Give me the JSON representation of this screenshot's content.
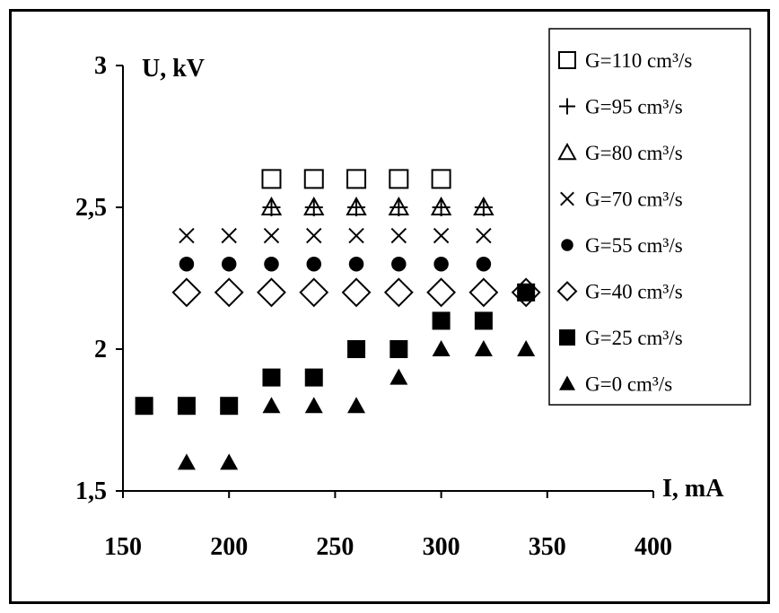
{
  "chart_data": {
    "type": "scatter",
    "title": "",
    "xlabel": "I, mA",
    "ylabel": "U, kV",
    "xlim": [
      150,
      400
    ],
    "ylim": [
      1.5,
      3
    ],
    "x_ticks": [
      150,
      200,
      250,
      300,
      350,
      400
    ],
    "x_tick_labels": [
      "150",
      "200",
      "250",
      "300",
      "350",
      "400"
    ],
    "y_ticks": [
      1.5,
      2,
      2.5,
      3
    ],
    "y_tick_labels": [
      "1,5",
      "2",
      "2,5",
      "3"
    ],
    "grid": false,
    "legend_position": "top-right",
    "series": [
      {
        "name": "G=110 cm³/s",
        "marker": "square-open",
        "x": [
          220,
          240,
          260,
          280,
          300
        ],
        "y": [
          2.6,
          2.6,
          2.6,
          2.6,
          2.6
        ]
      },
      {
        "name": "G=95 cm³/s",
        "marker": "plus",
        "x": [
          220,
          240,
          260,
          280,
          300,
          320
        ],
        "y": [
          2.5,
          2.5,
          2.5,
          2.5,
          2.5,
          2.5
        ]
      },
      {
        "name": "G=80 cm³/s",
        "marker": "triangle-open",
        "x": [
          220,
          240,
          260,
          280,
          300,
          320
        ],
        "y": [
          2.5,
          2.5,
          2.5,
          2.5,
          2.5,
          2.5
        ]
      },
      {
        "name": "G=70 cm³/s",
        "marker": "cross",
        "x": [
          180,
          200,
          220,
          240,
          260,
          280,
          300,
          320
        ],
        "y": [
          2.4,
          2.4,
          2.4,
          2.4,
          2.4,
          2.4,
          2.4,
          2.4
        ]
      },
      {
        "name": "G=55 cm³/s",
        "marker": "circle-filled",
        "x": [
          180,
          200,
          220,
          240,
          260,
          280,
          300,
          320,
          340
        ],
        "y": [
          2.3,
          2.3,
          2.3,
          2.3,
          2.3,
          2.3,
          2.3,
          2.3,
          2.2
        ]
      },
      {
        "name": "G=40 cm³/s",
        "marker": "diamond-open",
        "x": [
          180,
          200,
          220,
          240,
          260,
          280,
          300,
          320,
          340
        ],
        "y": [
          2.2,
          2.2,
          2.2,
          2.2,
          2.2,
          2.2,
          2.2,
          2.2,
          2.2
        ]
      },
      {
        "name": "G=25 cm³/s",
        "marker": "square-filled",
        "x": [
          160,
          180,
          200,
          220,
          240,
          260,
          280,
          300,
          320,
          340
        ],
        "y": [
          1.8,
          1.8,
          1.8,
          1.9,
          1.9,
          2.0,
          2.0,
          2.1,
          2.1,
          2.2
        ]
      },
      {
        "name": "G=0 cm³/s",
        "marker": "triangle-filled",
        "x": [
          180,
          200,
          220,
          240,
          260,
          280,
          300,
          320,
          340
        ],
        "y": [
          1.6,
          1.6,
          1.8,
          1.8,
          1.8,
          1.9,
          2.0,
          2.0,
          2.0
        ]
      }
    ]
  }
}
